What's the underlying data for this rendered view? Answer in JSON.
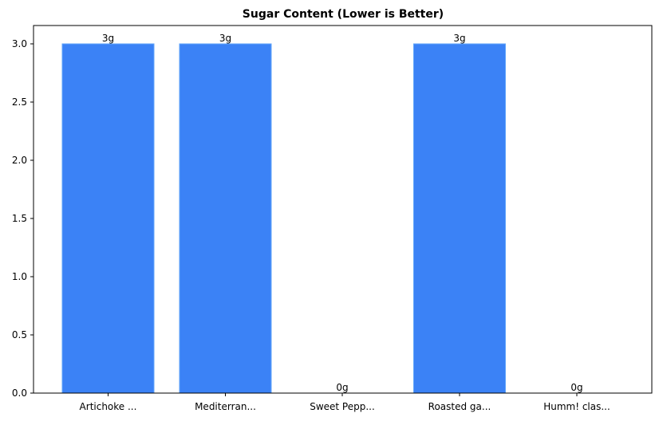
{
  "chart_data": {
    "type": "bar",
    "title": "Sugar Content (Lower is Better)",
    "xlabel": "",
    "ylabel": "",
    "categories": [
      "Artichoke ...",
      "Mediterran...",
      "Sweet Pepp...",
      "Roasted ga...",
      "Humm! clas..."
    ],
    "values": [
      3,
      3,
      0,
      3,
      0
    ],
    "data_labels": [
      "3g",
      "3g",
      "0g",
      "3g",
      "0g"
    ],
    "ylim": [
      0,
      3.15
    ],
    "yticks": [
      "0.0",
      "0.5",
      "1.0",
      "1.5",
      "2.0",
      "2.5",
      "3.0"
    ],
    "grid": false,
    "legend": null,
    "colors": {
      "bar": "#3b82f6",
      "bar_edge": "#60a5fa",
      "axis": "#000000"
    }
  }
}
